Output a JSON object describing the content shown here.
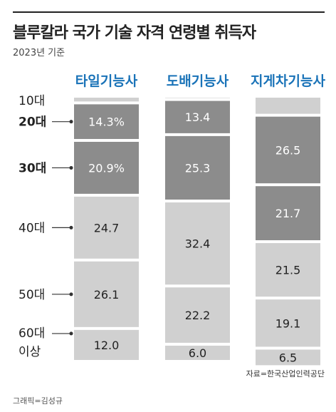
{
  "title": "블루칼라 국가 기술 자격 연령별 취득자",
  "subtitle": "2023년 기준",
  "source": "자료=한국산업인력공단",
  "credit": "그래픽=김성규",
  "chart_data": {
    "type": "bar",
    "stacked": true,
    "unit": "%",
    "categories": [
      "타일기능사",
      "도배기능사",
      "지게차기능사"
    ],
    "series": [
      {
        "name": "10대",
        "values": [
          2.0,
          0.7,
          6.7
        ],
        "display": [
          "",
          "",
          ""
        ],
        "color": "#d0d0d0",
        "text_color": "#222222"
      },
      {
        "name": "20대",
        "values": [
          14.3,
          13.4,
          26.5
        ],
        "display": [
          "14.3%",
          "13.4",
          "26.5"
        ],
        "color": "#8c8c8c",
        "text_color": "#ffffff"
      },
      {
        "name": "30대",
        "values": [
          20.9,
          25.3,
          21.7
        ],
        "display": [
          "20.9%",
          "25.3",
          "21.7"
        ],
        "color": "#8c8c8c",
        "text_color": "#ffffff"
      },
      {
        "name": "40대",
        "values": [
          24.7,
          32.4,
          21.5
        ],
        "display": [
          "24.7",
          "32.4",
          "21.5"
        ],
        "color": "#d0d0d0",
        "text_color": "#222222"
      },
      {
        "name": "50대",
        "values": [
          26.1,
          22.2,
          19.1
        ],
        "display": [
          "26.1",
          "22.2",
          "19.1"
        ],
        "color": "#d0d0d0",
        "text_color": "#222222"
      },
      {
        "name": "60대\n이상",
        "values": [
          12.0,
          6.0,
          6.5
        ],
        "display": [
          "12.0",
          "6.0",
          "6.5"
        ],
        "color": "#d0d0d0",
        "text_color": "#222222"
      }
    ],
    "legend_emphasis": [
      "20대",
      "30대"
    ],
    "category_label_color": "#1a73b8",
    "ylim": [
      0,
      100
    ],
    "grid": false
  }
}
